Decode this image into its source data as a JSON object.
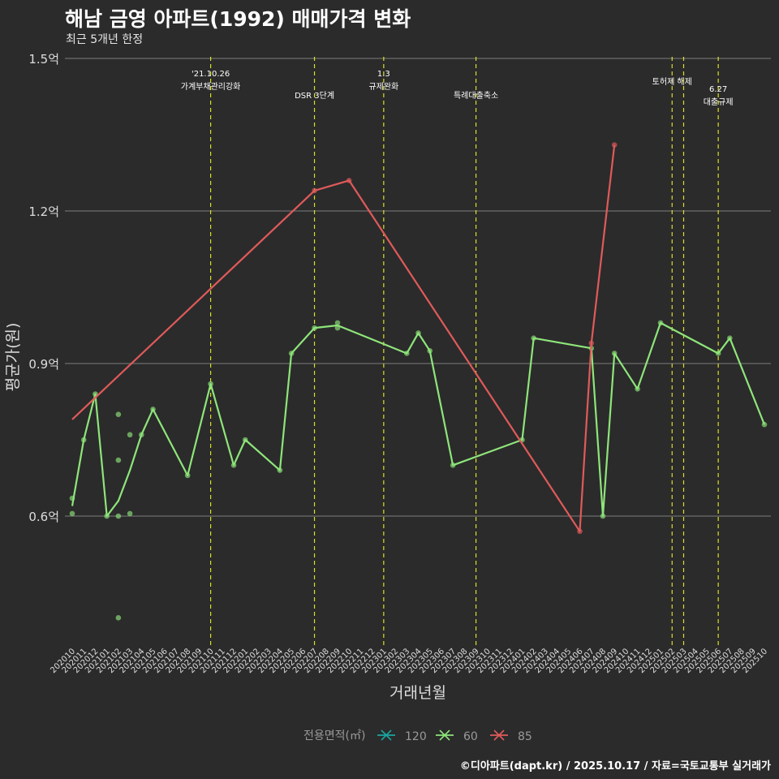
{
  "header": {
    "title": "해남 금영 아파트(1992) 매매가격 변화",
    "subtitle": "최근 5개년 한정"
  },
  "caption": "©디아파트(dapt.kr) / 2025.10.17 / 자료=국토교통부 실거래가",
  "colors": {
    "background": "#2b2b2b",
    "grid": "#6e6e6e",
    "vline": "#d8df2a",
    "series_120": "#1aa6a0",
    "series_60": "#8ee57a",
    "series_85": "#e05a5a"
  },
  "chart_data": {
    "type": "line",
    "xlabel": "거래년월",
    "ylabel": "평균가(원)",
    "ylim": [
      0.35,
      1.5
    ],
    "yticks": [
      0.6,
      0.9,
      1.2,
      1.5
    ],
    "ytick_labels": [
      "0.6억",
      "0.9억",
      "1.2억",
      "1.5억"
    ],
    "categories": [
      "202010",
      "202011",
      "202012",
      "202101",
      "202102",
      "202103",
      "202104",
      "202105",
      "202106",
      "202107",
      "202108",
      "202109",
      "202110",
      "202111",
      "202112",
      "202201",
      "202202",
      "202203",
      "202204",
      "202205",
      "202206",
      "202207",
      "202208",
      "202209",
      "202210",
      "202211",
      "202212",
      "202301",
      "202302",
      "202303",
      "202304",
      "202305",
      "202306",
      "202307",
      "202308",
      "202309",
      "202310",
      "202311",
      "202312",
      "202401",
      "202402",
      "202403",
      "202404",
      "202405",
      "202406",
      "202407",
      "202408",
      "202409",
      "202410",
      "202411",
      "202412",
      "202501",
      "202502",
      "202503",
      "202504",
      "202505",
      "202506",
      "202507",
      "202508",
      "202509",
      "202510"
    ],
    "legend": {
      "title": "전용면적(㎡)",
      "entries": [
        {
          "label": "120",
          "color": "#1aa6a0"
        },
        {
          "label": "60",
          "color": "#8ee57a"
        },
        {
          "label": "85",
          "color": "#e05a5a"
        }
      ]
    },
    "series": [
      {
        "name": "60",
        "color": "#8ee57a",
        "line": [
          [
            "202010",
            0.62
          ],
          [
            "202011",
            0.75
          ],
          [
            "202012",
            0.84
          ],
          [
            "202101",
            0.6
          ],
          [
            "202102",
            0.63
          ],
          [
            "202103",
            0.69
          ],
          [
            "202104",
            0.76
          ],
          [
            "202105",
            0.81
          ],
          [
            "202108",
            0.68
          ],
          [
            "202110",
            0.86
          ],
          [
            "202112",
            0.7
          ],
          [
            "202201",
            0.75
          ],
          [
            "202204",
            0.69
          ],
          [
            "202205",
            0.92
          ],
          [
            "202207",
            0.97
          ],
          [
            "202209",
            0.975
          ],
          [
            "202303",
            0.92
          ],
          [
            "202304",
            0.96
          ],
          [
            "202305",
            0.925
          ],
          [
            "202307",
            0.7
          ],
          [
            "202401",
            0.75
          ],
          [
            "202402",
            0.95
          ],
          [
            "202407",
            0.93
          ],
          [
            "202408",
            0.6
          ],
          [
            "202409",
            0.92
          ],
          [
            "202411",
            0.85
          ],
          [
            "202501",
            0.98
          ],
          [
            "202506",
            0.92
          ],
          [
            "202507",
            0.95
          ],
          [
            "202510",
            0.78
          ]
        ],
        "points": [
          [
            "202010",
            0.635
          ],
          [
            "202010",
            0.605
          ],
          [
            "202011",
            0.75
          ],
          [
            "202012",
            0.84
          ],
          [
            "202101",
            0.6
          ],
          [
            "202102",
            0.8
          ],
          [
            "202102",
            0.71
          ],
          [
            "202102",
            0.6
          ],
          [
            "202102",
            0.4
          ],
          [
            "202103",
            0.76
          ],
          [
            "202103",
            0.605
          ],
          [
            "202104",
            0.76
          ],
          [
            "202105",
            0.81
          ],
          [
            "202108",
            0.68
          ],
          [
            "202110",
            0.86
          ],
          [
            "202112",
            0.7
          ],
          [
            "202201",
            0.75
          ],
          [
            "202204",
            0.69
          ],
          [
            "202205",
            0.92
          ],
          [
            "202207",
            0.97
          ],
          [
            "202209",
            0.98
          ],
          [
            "202209",
            0.97
          ],
          [
            "202303",
            0.92
          ],
          [
            "202304",
            0.96
          ],
          [
            "202305",
            0.925
          ],
          [
            "202307",
            0.7
          ],
          [
            "202401",
            0.75
          ],
          [
            "202402",
            0.95
          ],
          [
            "202407",
            0.93
          ],
          [
            "202408",
            0.6
          ],
          [
            "202409",
            0.92
          ],
          [
            "202411",
            0.85
          ],
          [
            "202501",
            0.98
          ],
          [
            "202506",
            0.92
          ],
          [
            "202507",
            0.95
          ],
          [
            "202510",
            0.78
          ]
        ]
      },
      {
        "name": "85",
        "color": "#e05a5a",
        "line": [
          [
            "202010",
            0.79
          ],
          [
            "202207",
            1.24
          ],
          [
            "202210",
            1.26
          ],
          [
            "202406",
            0.57
          ],
          [
            "202407",
            0.94
          ],
          [
            "202409",
            1.33
          ]
        ],
        "points": [
          [
            "202207",
            1.24
          ],
          [
            "202210",
            1.26
          ],
          [
            "202406",
            0.57
          ],
          [
            "202407",
            0.94
          ],
          [
            "202409",
            1.33
          ]
        ]
      },
      {
        "name": "120",
        "color": "#1aa6a0",
        "line": [],
        "points": []
      }
    ],
    "events": [
      {
        "x": "202110",
        "lines": [
          "'21.10.26",
          "가계부채관리강화"
        ],
        "row": 0
      },
      {
        "x": "202207",
        "lines": [
          "DSR 3단계"
        ],
        "row": 2
      },
      {
        "x": "202301",
        "lines": [
          "1.3",
          "규제완화"
        ],
        "row": 0
      },
      {
        "x": "202309",
        "lines": [
          "특례대출축소"
        ],
        "row": 2
      },
      {
        "x": "202502",
        "lines": [
          "토허제 해제"
        ],
        "row": 1
      },
      {
        "x": "202503",
        "lines": [],
        "row": 1
      },
      {
        "x": "202506",
        "lines": [
          "6.27",
          "대출규제"
        ],
        "row": 3
      }
    ]
  }
}
